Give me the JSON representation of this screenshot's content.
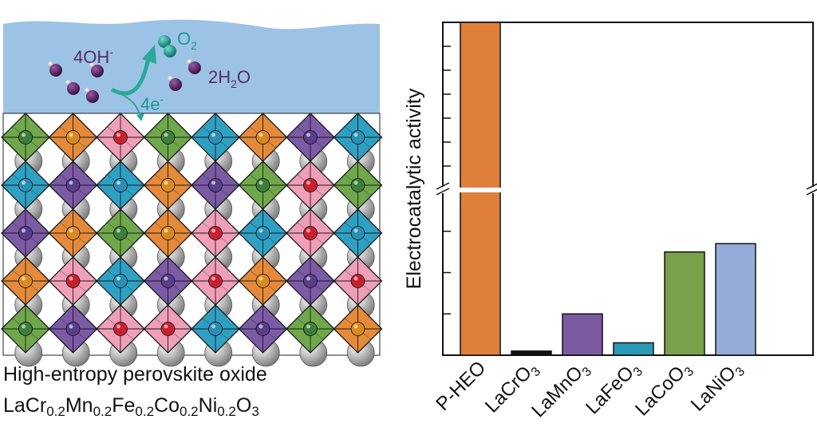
{
  "illustration": {
    "species": {
      "hydroxide": "4OH",
      "hydroxide_charge": "-",
      "oxygen": "O",
      "oxygen_sub": "2",
      "water_coef": "2H",
      "water_sub": "2",
      "water_tail": "O",
      "electrons": "4e",
      "electron_charge": "-"
    },
    "colors": {
      "electrolyte": "#9cc3e6",
      "Cr": "#3a7f3a",
      "Mn": "#5a3d8c",
      "Fe": "#c8202e",
      "Co": "#2a8fb4",
      "Ni": "#d98a1e",
      "oct_green": "#6fa84a",
      "oct_purple": "#7b5aa6",
      "oct_pink": "#ef9fb8",
      "oct_blue": "#2fa0c2",
      "oct_orange": "#e58a3a",
      "la_atom": "#b0b0b0",
      "hydroxide_color": "#5a2a6a",
      "oxygen_color": "#1a9a8e"
    },
    "lattice_pattern": [
      [
        "green",
        "orange",
        "pink",
        "green",
        "blue",
        "orange",
        "purple",
        "blue"
      ],
      [
        "blue",
        "purple",
        "blue",
        "orange",
        "purple",
        "green",
        "pink",
        "green"
      ],
      [
        "purple",
        "orange",
        "green",
        "orange",
        "pink",
        "blue",
        "pink",
        "blue"
      ],
      [
        "orange",
        "pink",
        "blue",
        "purple",
        "pink",
        "orange",
        "purple",
        "pink"
      ],
      [
        "green",
        "purple",
        "pink",
        "pink",
        "blue",
        "purple",
        "green",
        "orange"
      ]
    ]
  },
  "caption": {
    "title": "High-entropy perovskite oxide",
    "formula_parts": [
      "LaCr",
      "0.2",
      "Mn",
      "0.2",
      "Fe",
      "0.2",
      "Co",
      "0.2",
      "Ni",
      "0.2",
      "O",
      "3"
    ]
  },
  "chart_data": {
    "type": "bar",
    "categories": [
      "P-HEO",
      "LaCrO3",
      "LaMnO3",
      "LaFeO3",
      "LaCoO3",
      "LaNiO3"
    ],
    "category_labels": [
      {
        "main": "P-HEO",
        "sub": ""
      },
      {
        "main": "LaCrO",
        "sub": "3"
      },
      {
        "main": "LaMnO",
        "sub": "3"
      },
      {
        "main": "LaFeO",
        "sub": "3"
      },
      {
        "main": "LaCoO",
        "sub": "3"
      },
      {
        "main": "LaNiO",
        "sub": "3"
      }
    ],
    "values": [
      17.0,
      0.1,
      1.0,
      0.3,
      2.5,
      2.7
    ],
    "colors": [
      "#e07f3a",
      "#111111",
      "#7b5aa0",
      "#2a99b4",
      "#79a04a",
      "#96acd8"
    ],
    "ylabel": "Electrocatalytic activity",
    "axis_break": true,
    "lower_range": [
      0,
      4
    ],
    "upper_range": [
      4,
      8
    ],
    "tick_count_lower": 4,
    "tick_count_upper": 7,
    "grid": false
  }
}
